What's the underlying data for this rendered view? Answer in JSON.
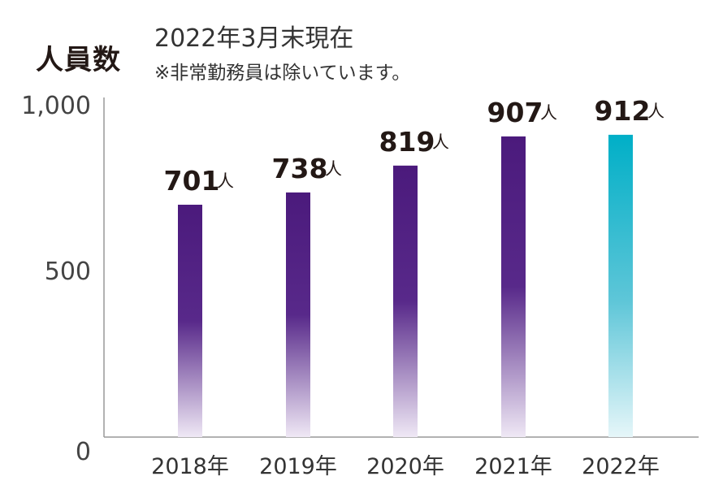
{
  "header": {
    "title": "人員数",
    "subtitle": "2022年3月末現在",
    "note": "※非常勤務員は除いています。"
  },
  "colors": {
    "past_bar": "#4b1a7c",
    "current_bar": "#00afc7"
  },
  "chart_data": {
    "type": "bar",
    "title": "人員数",
    "subtitle": "2022年3月末現在",
    "note": "※非常勤務員は除いています。",
    "categories": [
      "2018年",
      "2019年",
      "2020年",
      "2021年",
      "2022年"
    ],
    "values": [
      701,
      738,
      819,
      907,
      912
    ],
    "data_labels": [
      "701",
      "738",
      "819",
      "907",
      "912"
    ],
    "unit": "人",
    "y_ticks": [
      "0",
      "500",
      "1,000"
    ],
    "ylim": [
      0,
      1000
    ],
    "grid": false,
    "highlight_index": 4
  }
}
